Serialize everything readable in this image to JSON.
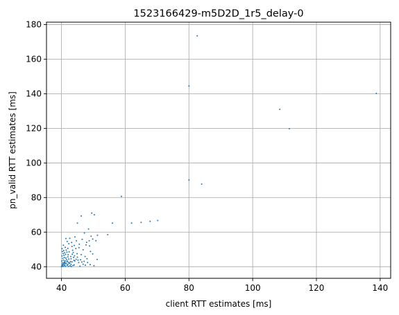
{
  "chart_data": {
    "type": "scatter",
    "title": "1523166429-m5D2D_1r5_delay-0",
    "xlabel": "client RTT estimates [ms]",
    "ylabel": "pn_valid RTT estimates [ms]",
    "xlim": [
      35.3,
      143.3
    ],
    "ylim": [
      33.3,
      181.4
    ],
    "xticks": [
      40,
      60,
      80,
      100,
      120,
      140
    ],
    "yticks": [
      40,
      60,
      80,
      100,
      120,
      140,
      160,
      180
    ],
    "grid": true,
    "marker_color": "#1f77b4",
    "series": [
      {
        "points": [
          [
            82.6,
            173.5
          ],
          [
            80.0,
            144.5
          ],
          [
            138.8,
            140.2
          ],
          [
            108.5,
            131.0
          ],
          [
            111.5,
            119.8
          ],
          [
            80.0,
            90.2
          ],
          [
            84.0,
            87.8
          ],
          [
            58.8,
            80.7
          ],
          [
            46.2,
            69.3
          ],
          [
            49.5,
            71.0
          ],
          [
            50.3,
            70.0
          ],
          [
            70.2,
            66.7
          ],
          [
            67.8,
            66.2
          ],
          [
            65.0,
            65.6
          ],
          [
            62.0,
            65.2
          ],
          [
            56.0,
            65.2
          ],
          [
            45.0,
            65.2
          ],
          [
            48.5,
            61.8
          ],
          [
            47.2,
            59.5
          ],
          [
            51.3,
            58.2
          ],
          [
            54.5,
            58.5
          ],
          [
            49.3,
            57.6
          ],
          [
            44.2,
            57.2
          ],
          [
            42.6,
            56.4
          ],
          [
            41.4,
            56.3
          ],
          [
            49.8,
            56.0
          ],
          [
            48.7,
            55.0
          ],
          [
            47.9,
            54.1
          ],
          [
            50.8,
            55.0
          ],
          [
            43.2,
            54.0
          ],
          [
            44.7,
            55.0
          ],
          [
            46.5,
            55.8
          ],
          [
            41.8,
            54.6
          ],
          [
            45.6,
            53.0
          ],
          [
            42.3,
            53.3
          ],
          [
            47.7,
            52.6
          ],
          [
            48.8,
            52.0
          ],
          [
            44.0,
            52.3
          ],
          [
            43.3,
            51.7
          ],
          [
            45.5,
            51.0
          ],
          [
            42.0,
            50.6
          ],
          [
            46.8,
            49.8
          ],
          [
            49.1,
            48.8
          ],
          [
            49.8,
            47.4
          ],
          [
            43.7,
            48.2
          ],
          [
            44.9,
            47.5
          ],
          [
            46.2,
            47.0
          ],
          [
            47.4,
            45.9
          ],
          [
            45.0,
            45.5
          ],
          [
            51.2,
            44.2
          ],
          [
            48.0,
            44.6
          ],
          [
            43.0,
            44.6
          ],
          [
            44.2,
            43.4
          ],
          [
            45.4,
            42.4
          ],
          [
            46.8,
            41.4
          ],
          [
            44.0,
            41.0
          ],
          [
            40.1,
            40.4
          ],
          [
            40.5,
            40.2
          ],
          [
            40.9,
            40.6
          ],
          [
            41.3,
            40.3
          ],
          [
            41.8,
            40.8
          ],
          [
            42.2,
            40.2
          ],
          [
            42.7,
            40.5
          ],
          [
            43.1,
            40.1
          ],
          [
            43.6,
            40.7
          ],
          [
            40.2,
            41.2
          ],
          [
            40.6,
            41.5
          ],
          [
            41.0,
            41.1
          ],
          [
            41.5,
            41.8
          ],
          [
            42.0,
            41.4
          ],
          [
            42.5,
            41.9
          ],
          [
            43.0,
            41.3
          ],
          [
            40.3,
            42.2
          ],
          [
            40.8,
            42.6
          ],
          [
            41.2,
            42.0
          ],
          [
            41.7,
            42.9
          ],
          [
            42.2,
            42.4
          ],
          [
            42.8,
            43.0
          ],
          [
            40.1,
            43.3
          ],
          [
            40.6,
            43.8
          ],
          [
            41.1,
            43.5
          ],
          [
            41.6,
            44.0
          ],
          [
            42.3,
            44.4
          ],
          [
            40.4,
            44.8
          ],
          [
            40.9,
            45.3
          ],
          [
            41.4,
            45.0
          ],
          [
            42.0,
            45.7
          ],
          [
            40.2,
            46.2
          ],
          [
            40.8,
            46.6
          ],
          [
            41.3,
            47.1
          ],
          [
            42.1,
            46.9
          ],
          [
            40.5,
            47.6
          ],
          [
            41.0,
            48.0
          ],
          [
            41.7,
            48.4
          ],
          [
            40.3,
            48.8
          ],
          [
            42.4,
            48.6
          ],
          [
            43.4,
            47.2
          ],
          [
            44.1,
            46.3
          ],
          [
            43.8,
            45.4
          ],
          [
            42.9,
            45.9
          ],
          [
            40.7,
            49.3
          ],
          [
            41.5,
            49.6
          ],
          [
            40.2,
            50.4
          ],
          [
            41.2,
            51.2
          ],
          [
            40.6,
            52.4
          ],
          [
            40.0,
            40.0
          ],
          [
            40.4,
            40.9
          ],
          [
            40.8,
            41.9
          ],
          [
            41.1,
            42.7
          ],
          [
            41.9,
            43.2
          ],
          [
            42.6,
            42.1
          ],
          [
            43.3,
            42.8
          ],
          [
            43.9,
            43.7
          ],
          [
            44.6,
            44.3
          ],
          [
            45.2,
            43.8
          ],
          [
            46.0,
            44.0
          ],
          [
            47.1,
            43.1
          ],
          [
            48.2,
            42.4
          ],
          [
            49.0,
            41.2
          ],
          [
            50.2,
            40.6
          ],
          [
            45.8,
            40.3
          ],
          [
            47.5,
            40.9
          ],
          [
            46.4,
            42.7
          ],
          [
            43.5,
            49.5
          ],
          [
            44.5,
            50.5
          ]
        ]
      }
    ]
  }
}
